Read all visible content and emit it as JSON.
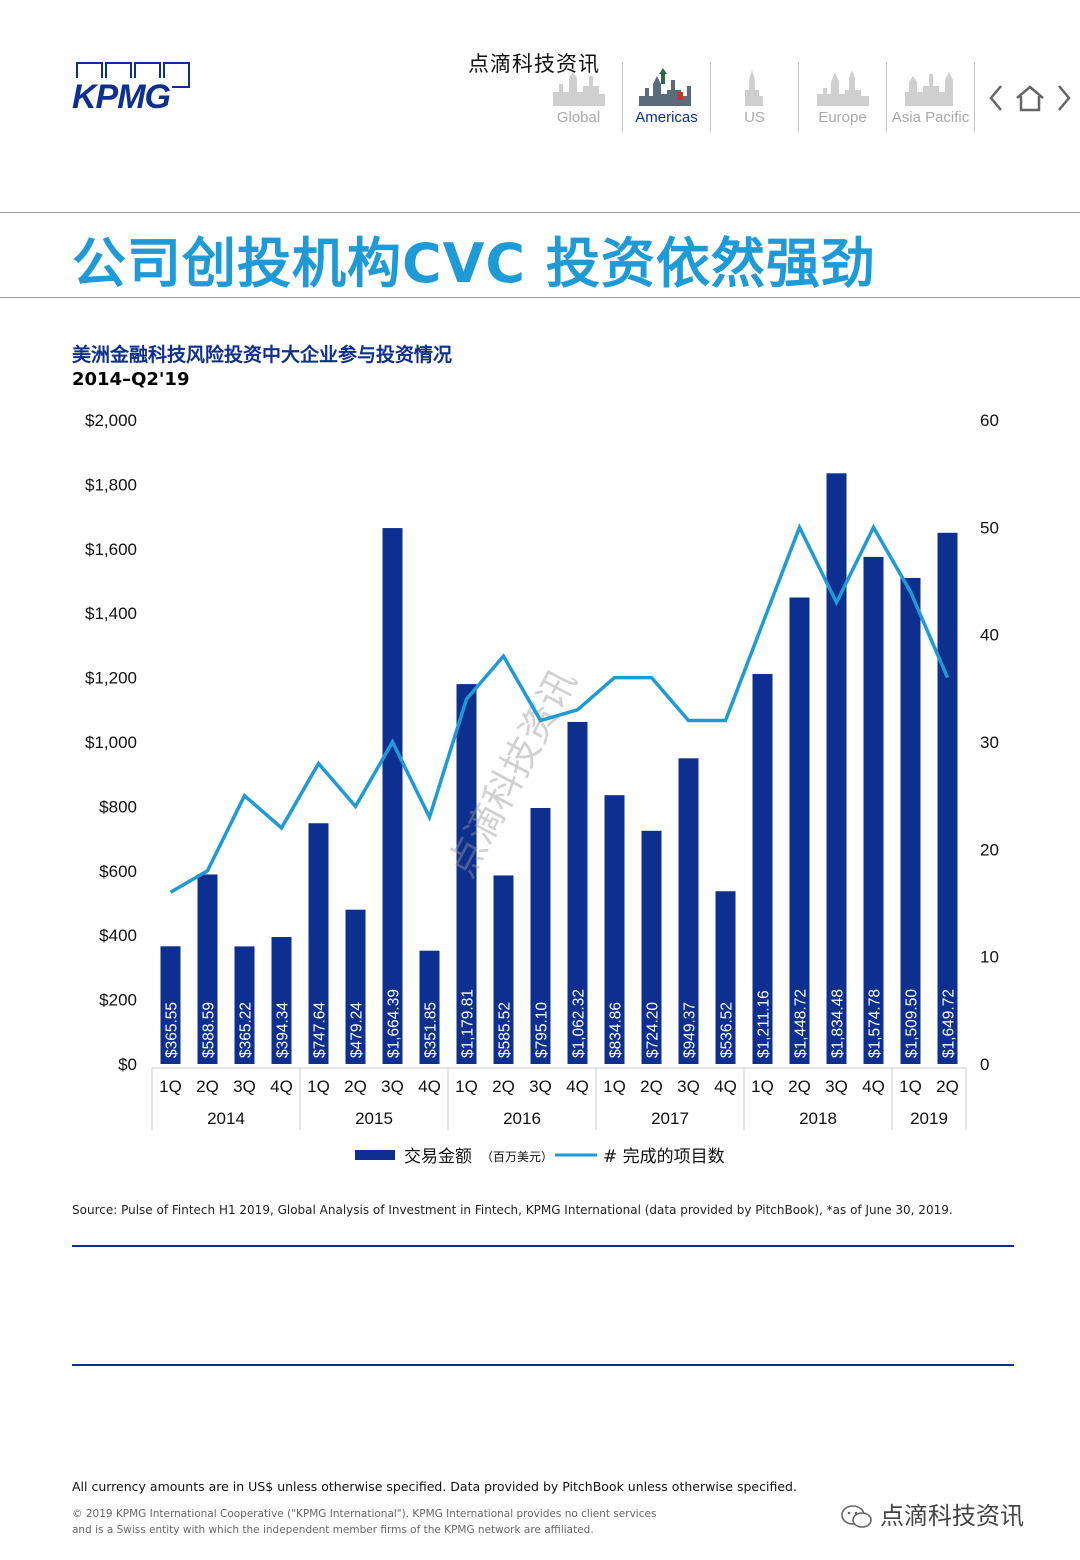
{
  "header": {
    "logo_text": "KPMG",
    "watermark_text": "点滴科技资讯",
    "regions": [
      {
        "label": "Global",
        "active": false
      },
      {
        "label": "Americas",
        "active": true
      },
      {
        "label": "US",
        "active": false
      },
      {
        "label": "Europe",
        "active": false
      },
      {
        "label": "Asia Pacific",
        "active": false
      }
    ]
  },
  "page_title": "公司创投机构CVC 投资依然强劲",
  "chart_heading": {
    "title": "美洲金融科技风险投资中大企业参与投资情况",
    "subtitle": "2014–Q2'19"
  },
  "chart_data": {
    "type": "bar+line",
    "title": "美洲金融科技风险投资中大企业参与投资情况",
    "subtitle": "2014–Q2'19",
    "categories": [
      "1Q",
      "2Q",
      "3Q",
      "4Q",
      "1Q",
      "2Q",
      "3Q",
      "4Q",
      "1Q",
      "2Q",
      "3Q",
      "4Q",
      "1Q",
      "2Q",
      "3Q",
      "4Q",
      "1Q",
      "2Q",
      "3Q",
      "4Q",
      "1Q",
      "2Q"
    ],
    "groups": [
      {
        "label": "2014",
        "count": 4
      },
      {
        "label": "2015",
        "count": 4
      },
      {
        "label": "2016",
        "count": 4
      },
      {
        "label": "2017",
        "count": 4
      },
      {
        "label": "2018",
        "count": 4
      },
      {
        "label": "2019",
        "count": 2
      }
    ],
    "series": [
      {
        "name": "交易金额",
        "name_note": "（百万美元）",
        "type": "bar",
        "axis": "left",
        "color": "#0d2f8f",
        "values": [
          365.55,
          588.59,
          365.22,
          394.34,
          747.64,
          479.24,
          1664.39,
          351.85,
          1179.81,
          585.52,
          795.1,
          1062.32,
          834.86,
          724.2,
          949.37,
          536.52,
          1211.16,
          1448.72,
          1834.48,
          1574.78,
          1509.5,
          1649.72
        ],
        "labels": [
          "$365.55",
          "$588.59",
          "$365.22",
          "$394.34",
          "$747.64",
          "$479.24",
          "$1,664.39",
          "$351.85",
          "$1,179.81",
          "$585.52",
          "$795.10",
          "$1,062.32",
          "$834.86",
          "$724.20",
          "$949.37",
          "$536.52",
          "$1,211.16",
          "$1,448.72",
          "$1,834.48",
          "$1,574.78",
          "$1,509.50",
          "$1,649.72"
        ]
      },
      {
        "name": "# 完成的项目数",
        "type": "line",
        "axis": "right",
        "color": "#1e9bd7",
        "values": [
          16,
          18,
          25,
          22,
          28,
          24,
          30,
          23,
          34,
          38,
          32,
          33,
          36,
          36,
          32,
          32,
          41,
          50,
          43,
          50,
          44,
          36
        ]
      }
    ],
    "y_left": {
      "range": [
        0,
        2000
      ],
      "ticks": [
        "$0",
        "$200",
        "$400",
        "$600",
        "$800",
        "$1,000",
        "$1,200",
        "$1,400",
        "$1,600",
        "$1,800",
        "$2,000"
      ]
    },
    "y_right": {
      "range": [
        0,
        60
      ],
      "ticks": [
        "0",
        "10",
        "20",
        "30",
        "40",
        "50",
        "60"
      ]
    },
    "grid": false,
    "legend_position": "bottom",
    "watermark": "点滴科技资讯"
  },
  "footer": {
    "source": "Source: Pulse of Fintech H1 2019, Global Analysis of Investment in Fintech, KPMG International (data provided by PitchBook), *as of June 30, 2019.",
    "note": "All currency amounts are in US$ unless otherwise specified. Data provided by PitchBook unless otherwise specified.",
    "copyright": "© 2019 KPMG International Cooperative (\"KPMG International\"). KPMG International provides no client services and is a Swiss entity with which the independent member firms of the KPMG network are affiliated.",
    "wechat_label": "点滴科技资讯"
  }
}
